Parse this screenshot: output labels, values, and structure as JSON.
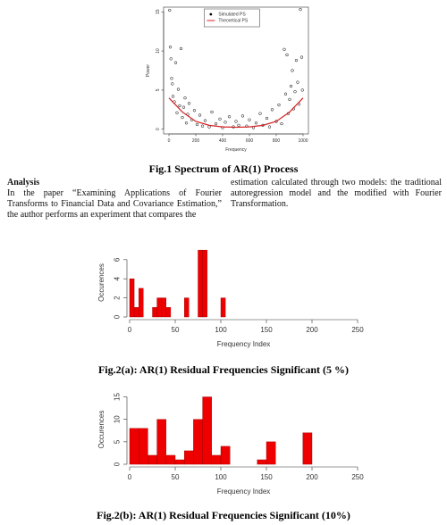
{
  "chart_data": [
    {
      "type": "scatter",
      "caption": "Fig.1 Spectrum of AR(1) Process",
      "xlabel": "Frequency",
      "ylabel": "Power",
      "xlim": [
        -40,
        1040
      ],
      "ylim": [
        -0.6,
        15.6
      ],
      "xticks": [
        0,
        200,
        400,
        600,
        800,
        1000
      ],
      "yticks": [
        0,
        5,
        10,
        15
      ],
      "legend": "upper center",
      "frame": true,
      "series": [
        {
          "name": "Simulated PS",
          "color": "#000000",
          "style": "points",
          "x": [
            5,
            10,
            15,
            20,
            25,
            30,
            40,
            50,
            60,
            70,
            80,
            90,
            100,
            110,
            120,
            130,
            140,
            150,
            170,
            190,
            210,
            230,
            250,
            270,
            300,
            320,
            350,
            380,
            400,
            420,
            450,
            480,
            500,
            520,
            550,
            580,
            600,
            630,
            650,
            680,
            700,
            730,
            750,
            770,
            800,
            820,
            840,
            860,
            870,
            880,
            890,
            900,
            910,
            920,
            930,
            940,
            950,
            960,
            970,
            980,
            990,
            995
          ],
          "values": [
            15.2,
            10.5,
            9,
            6.5,
            5.8,
            4.2,
            3.5,
            8.5,
            2.1,
            5.1,
            3,
            10.3,
            1.5,
            2.8,
            4,
            0.8,
            1.9,
            3.3,
            1.2,
            2.4,
            0.6,
            1.8,
            0.4,
            1.1,
            0.3,
            2.2,
            0.7,
            1.3,
            0.2,
            0.9,
            1.6,
            0.3,
            1,
            0.5,
            1.7,
            0.4,
            1.2,
            0.2,
            0.8,
            2,
            0.5,
            1.4,
            0.3,
            2.5,
            1,
            3.1,
            0.7,
            10.2,
            4.5,
            9.5,
            2,
            3.8,
            5.5,
            7.5,
            2.6,
            4.8,
            8.8,
            6,
            3.2,
            15.3,
            9.2,
            5
          ]
        },
        {
          "name": "Theoretical PS",
          "color": "#d62020",
          "style": "line",
          "x": [
            0,
            100,
            200,
            300,
            400,
            500,
            600,
            700,
            800,
            900,
            1000
          ],
          "values": [
            4,
            2.2,
            1,
            0.5,
            0.3,
            0.25,
            0.3,
            0.5,
            1,
            2.2,
            4
          ]
        }
      ]
    },
    {
      "type": "histogram",
      "caption": "Fig.2(a): AR(1) Residual Frequencies Significant (5 %)",
      "xlabel": "Frequency Index",
      "ylabel": "Occurences",
      "xlim": [
        0,
        250
      ],
      "ylim": [
        0,
        7.2
      ],
      "xticks": [
        0,
        50,
        100,
        150,
        200,
        250
      ],
      "yticks": [
        0,
        2,
        4,
        6
      ],
      "color": "#ee0000",
      "bins": [
        0,
        5,
        10,
        15,
        20,
        25,
        30,
        35,
        40,
        45,
        50,
        55,
        60,
        65,
        70,
        75,
        80,
        85,
        90,
        95,
        100,
        105
      ],
      "values": [
        4,
        1,
        3,
        0,
        0,
        1,
        2,
        2,
        1,
        0,
        0,
        0,
        2,
        0,
        0,
        7,
        7,
        0,
        0,
        0,
        2
      ]
    },
    {
      "type": "histogram",
      "caption": "Fig.2(b): AR(1) Residual Frequencies Significant (10%)",
      "xlabel": "Frequency Index",
      "ylabel": "Occurences",
      "xlim": [
        0,
        250
      ],
      "ylim": [
        0,
        15.5
      ],
      "xticks": [
        0,
        50,
        100,
        150,
        200,
        250
      ],
      "yticks": [
        0,
        5,
        10,
        15
      ],
      "color": "#ee0000",
      "bins": [
        0,
        10,
        20,
        30,
        40,
        50,
        60,
        70,
        80,
        90,
        100,
        110,
        120,
        130,
        140,
        150,
        160,
        170,
        180,
        190,
        200
      ],
      "values": [
        8,
        8,
        2,
        10,
        2,
        1,
        3,
        10,
        15,
        2,
        4,
        0,
        0,
        0,
        1,
        5,
        0,
        0,
        0,
        7
      ]
    }
  ],
  "analysis": {
    "heading": "Analysis",
    "columns": [
      "In the paper “Examining Applications of Fourier Transforms to Financial Data and Covariance Estimation,” the author performs an experiment that compares the",
      "estimation calculated through two models: the traditional autoregression model and the modified with Fourier Transformation."
    ]
  }
}
